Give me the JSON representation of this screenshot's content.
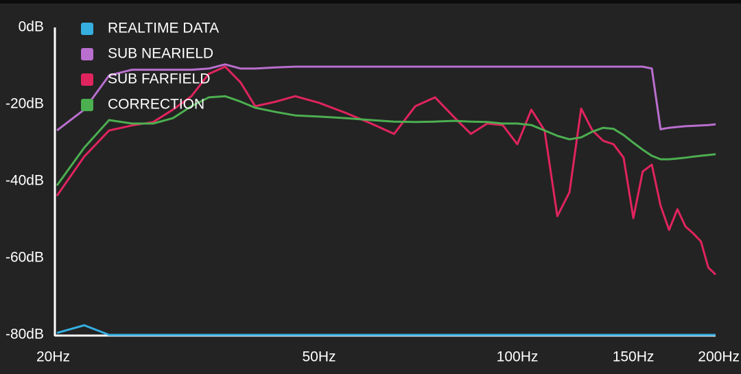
{
  "chart_data": {
    "type": "line",
    "x": [
      20,
      22,
      24,
      26,
      28,
      30,
      32,
      34,
      36,
      38,
      40,
      43,
      46,
      50,
      55,
      60,
      65,
      70,
      75,
      80,
      85,
      90,
      95,
      100,
      105,
      110,
      115,
      120,
      125,
      130,
      135,
      140,
      145,
      150,
      155,
      160,
      165,
      170,
      175,
      180,
      185,
      190,
      195,
      200
    ],
    "series": [
      {
        "name": "REALTIME DATA",
        "color": "#35aee0",
        "values": [
          -79.5,
          -77.5,
          -80,
          -80,
          -80,
          -80,
          -80,
          -80,
          -80,
          -80,
          -80,
          -80,
          -80,
          -80,
          -80,
          -80,
          -80,
          -80,
          -80,
          -80,
          -80,
          -80,
          -80,
          -80,
          -80,
          -80,
          -80,
          -80,
          -80,
          -80,
          -80,
          -80,
          -80,
          -80,
          -80,
          -80,
          -80,
          -80,
          -80,
          -80,
          -80,
          -80,
          -80,
          -80
        ]
      },
      {
        "name": "SUB NEARIELD",
        "color": "#b96fcf",
        "values": [
          -26.8,
          -21.4,
          -12.5,
          -11,
          -11,
          -11,
          -11,
          -10.7,
          -9.6,
          -10.7,
          -10.7,
          -10.4,
          -10.2,
          -10.2,
          -10.2,
          -10.2,
          -10.2,
          -10.2,
          -10.2,
          -10.2,
          -10.2,
          -10.2,
          -10.2,
          -10.2,
          -10.2,
          -10.2,
          -10.2,
          -10.2,
          -10.2,
          -10.2,
          -10.2,
          -10.2,
          -10.2,
          -10.2,
          -10.2,
          -10.7,
          -26.5,
          -26.1,
          -25.9,
          -25.7,
          -25.6,
          -25.5,
          -25.4,
          -25.2
        ]
      },
      {
        "name": "SUB FARFIELD",
        "color": "#e0245e",
        "values": [
          -43.8,
          -33.6,
          -26.8,
          -25.5,
          -24.6,
          -21.4,
          -17.9,
          -12.1,
          -10.2,
          -14.3,
          -20.5,
          -19.3,
          -17.9,
          -19.6,
          -22.3,
          -25,
          -27.7,
          -20.5,
          -18.2,
          -23.2,
          -27.7,
          -25,
          -25.4,
          -30.4,
          -21.4,
          -26.8,
          -49.1,
          -42.9,
          -21.1,
          -26.8,
          -29.5,
          -30.4,
          -33.9,
          -49.6,
          -37.5,
          -35.7,
          -46.4,
          -52.7,
          -47.3,
          -51.8,
          -53.6,
          -55.7,
          -62.5,
          -64.3
        ]
      },
      {
        "name": "CORRECTION",
        "color": "#4caf50",
        "values": [
          -41.1,
          -31.3,
          -24.1,
          -25,
          -25,
          -23.6,
          -20.5,
          -18.2,
          -17.9,
          -19.3,
          -20.9,
          -22,
          -22.9,
          -23.2,
          -23.6,
          -24.1,
          -24.5,
          -24.6,
          -24.5,
          -24.3,
          -24.5,
          -24.6,
          -25,
          -25,
          -25.4,
          -26.8,
          -28.2,
          -29.1,
          -28.6,
          -27.1,
          -26.1,
          -26.4,
          -28,
          -30,
          -31.8,
          -33.4,
          -34.3,
          -34.3,
          -34.1,
          -33.9,
          -33.6,
          -33.4,
          -33.2,
          -33
        ]
      }
    ],
    "xlim": [
      20,
      200
    ],
    "xscale": "log",
    "xticks": [
      {
        "value": 20,
        "label": "20Hz"
      },
      {
        "value": 50,
        "label": "50Hz"
      },
      {
        "value": 100,
        "label": "100Hz"
      },
      {
        "value": 150,
        "label": "150Hz"
      },
      {
        "value": 200,
        "label": "200Hz"
      }
    ],
    "ylim": [
      -80,
      0
    ],
    "yticks": [
      {
        "value": 0,
        "label": "0dB"
      },
      {
        "value": -20,
        "label": "-20dB"
      },
      {
        "value": -40,
        "label": "-40dB"
      },
      {
        "value": -60,
        "label": "-60dB"
      },
      {
        "value": -80,
        "label": "-80dB"
      }
    ],
    "legend": "top-left"
  }
}
